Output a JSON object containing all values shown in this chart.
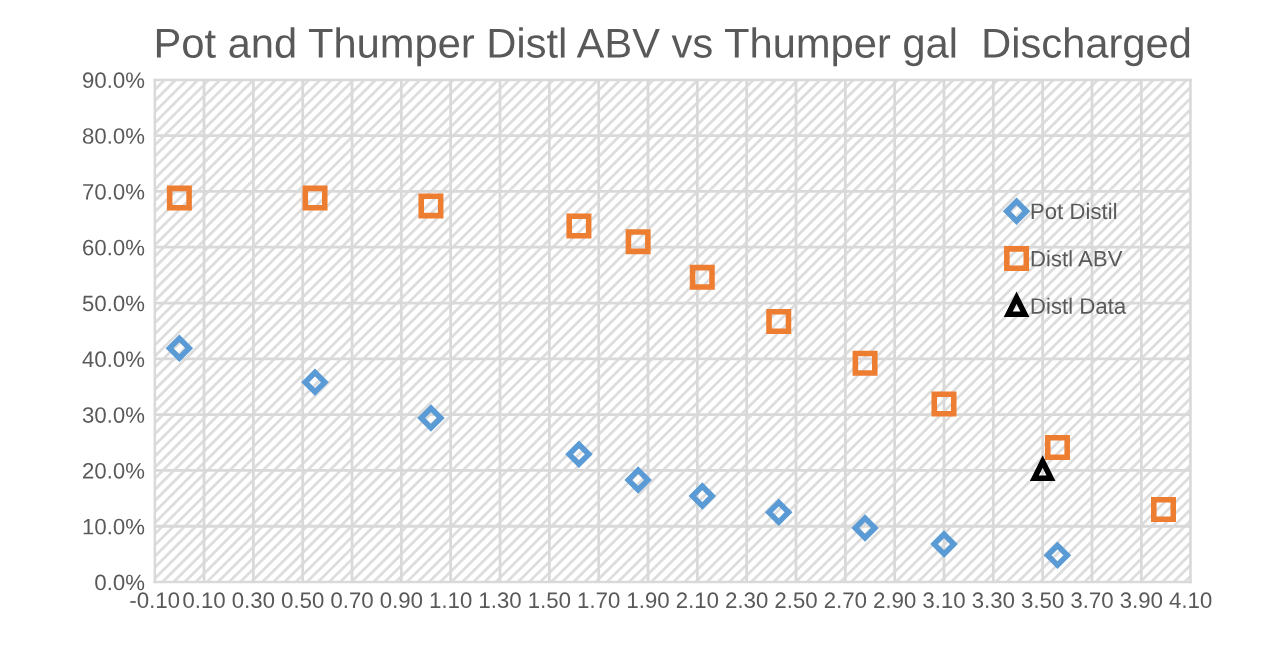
{
  "chart_data": {
    "type": "scatter",
    "title": "Pot and Thumper Distl ABV vs Thumper gal  Discharged",
    "series": [
      {
        "name": "Pot Distil",
        "color": "#5b9bd5",
        "marker": "diamond",
        "x": [
          0.0,
          0.55,
          1.02,
          1.62,
          1.86,
          2.12,
          2.43,
          2.78,
          3.1,
          3.56
        ],
        "values": [
          41.9,
          35.8,
          29.4,
          22.9,
          18.3,
          15.4,
          12.5,
          9.7,
          6.8,
          4.8
        ]
      },
      {
        "name": "Distl ABV",
        "color": "#ed7d31",
        "marker": "square",
        "x": [
          0.0,
          0.55,
          1.02,
          1.62,
          1.86,
          2.12,
          2.43,
          2.78,
          3.1,
          3.56,
          3.99
        ],
        "values": [
          68.8,
          68.8,
          67.4,
          63.8,
          61.0,
          54.6,
          46.7,
          39.2,
          31.9,
          24.1,
          13.0
        ]
      },
      {
        "name": "Distl Data",
        "color": "#000000",
        "marker": "triangle",
        "x": [
          3.5
        ],
        "values": [
          20.1
        ]
      }
    ],
    "xlim": [
      -0.1,
      4.1
    ],
    "xticks": [
      {
        "value": -0.1,
        "label": "-0.10"
      },
      {
        "value": 0.1,
        "label": "0.10"
      },
      {
        "value": 0.3,
        "label": "0.30"
      },
      {
        "value": 0.5,
        "label": "0.50"
      },
      {
        "value": 0.7,
        "label": "0.70"
      },
      {
        "value": 0.9,
        "label": "0.90"
      },
      {
        "value": 1.1,
        "label": "1.10"
      },
      {
        "value": 1.3,
        "label": "1.30"
      },
      {
        "value": 1.5,
        "label": "1.50"
      },
      {
        "value": 1.7,
        "label": "1.70"
      },
      {
        "value": 1.9,
        "label": "1.90"
      },
      {
        "value": 2.1,
        "label": "2.10"
      },
      {
        "value": 2.3,
        "label": "2.30"
      },
      {
        "value": 2.5,
        "label": "2.50"
      },
      {
        "value": 2.7,
        "label": "2.70"
      },
      {
        "value": 2.9,
        "label": "2.90"
      },
      {
        "value": 3.1,
        "label": "3.10"
      },
      {
        "value": 3.3,
        "label": "3.30"
      },
      {
        "value": 3.5,
        "label": "3.50"
      },
      {
        "value": 3.7,
        "label": "3.70"
      },
      {
        "value": 3.9,
        "label": "3.90"
      },
      {
        "value": 4.1,
        "label": "4.10"
      }
    ],
    "ylim": [
      0,
      90
    ],
    "yticks": [
      {
        "value": 0,
        "label": "0.0%"
      },
      {
        "value": 10,
        "label": "10.0%"
      },
      {
        "value": 20,
        "label": "20.0%"
      },
      {
        "value": 30,
        "label": "30.0%"
      },
      {
        "value": 40,
        "label": "40.0%"
      },
      {
        "value": 50,
        "label": "50.0%"
      },
      {
        "value": 60,
        "label": "60.0%"
      },
      {
        "value": 70,
        "label": "70.0%"
      },
      {
        "value": 80,
        "label": "80.0%"
      },
      {
        "value": 90,
        "label": "90.0%"
      }
    ],
    "grid": true,
    "legend": "right"
  }
}
